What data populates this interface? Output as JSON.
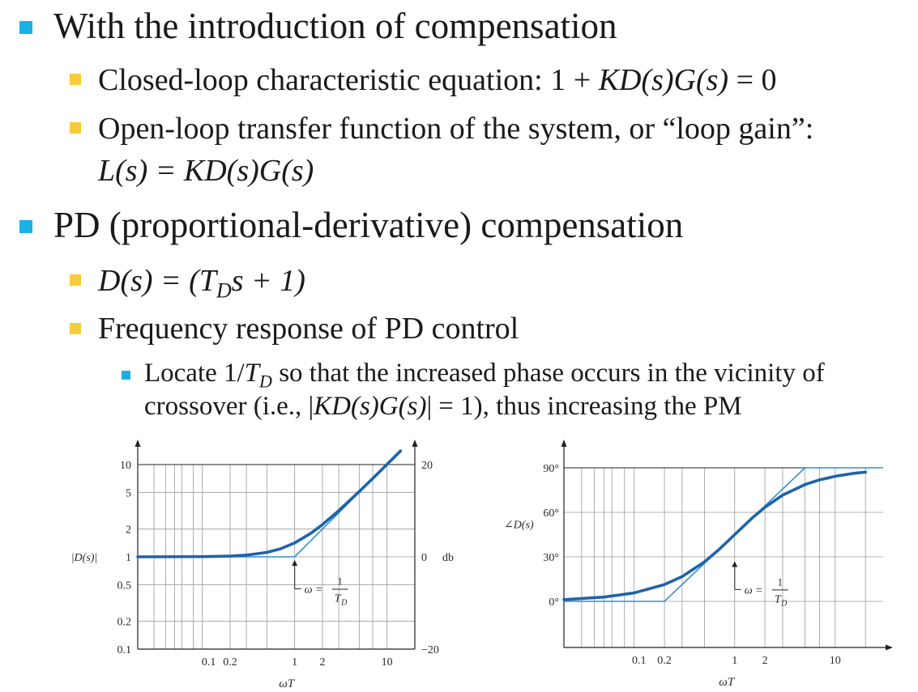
{
  "slide": {
    "bullet1": "With the introduction of compensation",
    "bullet1_1": {
      "text": "Closed-loop characteristic equation: 1 + ",
      "eq": "KD(s)G(s)",
      "tail": " = 0"
    },
    "bullet1_2": {
      "line1": "Open-loop transfer function of the system, or “loop gain”:",
      "line2": "L(s) = KD(s)G(s)"
    },
    "bullet2": "PD (proportional-derivative) compensation",
    "bullet2_1": {
      "eq": "D(s) = (T",
      "sub": "D",
      "tail": "s + 1)"
    },
    "bullet2_2": "Frequency response of PD control",
    "bullet2_2_1": {
      "pre": "Locate 1/",
      "t": "T",
      "sub": "D",
      "line1_tail": " so that the increased phase occurs in the vicinity of",
      "line2_pre": "crossover (i.e., |",
      "line2_eq": "KD(s)G(s)",
      "line2_tail": "| = 1), thus increasing the PM"
    }
  },
  "colors": {
    "bullet_level1": "#1ab2e6",
    "bullet_level2": "#f7cc3c",
    "curve": "#1f63a8",
    "asymptote": "#2f8fd0",
    "grid": "#9a9a9a"
  },
  "chart_data": [
    {
      "type": "line",
      "scale": "log-log",
      "xlabel": "ωT",
      "ylabel_left": "|D(s)|",
      "ylabel_right": "db",
      "x_ticks": [
        "0.1",
        "0.2",
        "1",
        "2",
        "10"
      ],
      "y_ticks_left": [
        "10",
        "5",
        "2",
        "1",
        "0.5",
        "0.2",
        "0.1"
      ],
      "y_ticks_right": [
        "20",
        "0",
        "−20"
      ],
      "xlim": [
        0.02,
        20
      ],
      "ylim": [
        0.1,
        10
      ],
      "annotation": {
        "at_x": 1,
        "lhs": "ω =",
        "num": "1",
        "den": "T",
        "den_sub": "D"
      },
      "series": [
        {
          "role": "exact",
          "x": [
            0.02,
            0.1,
            0.2,
            0.3,
            0.5,
            0.7,
            1,
            1.5,
            2,
            3,
            5,
            7,
            10,
            14
          ],
          "y": [
            1.0,
            1.005,
            1.02,
            1.044,
            1.118,
            1.221,
            1.414,
            1.803,
            2.236,
            3.162,
            5.099,
            7.071,
            10.05,
            14.04
          ]
        },
        {
          "role": "asymptote",
          "x": [
            0.02,
            1,
            14
          ],
          "y": [
            1,
            1,
            14
          ]
        }
      ]
    },
    {
      "type": "line",
      "scale": "semilog-x",
      "xlabel": "ωT",
      "ylabel": "∠D(s)",
      "x_ticks": [
        "0.1",
        "0.2",
        "1",
        "2",
        "10"
      ],
      "y_ticks": [
        "90°",
        "60°",
        "30°",
        "0°"
      ],
      "xlim": [
        0.02,
        30
      ],
      "ylim": [
        -30,
        90
      ],
      "annotation": {
        "at_x": 1,
        "lhs": "ω =",
        "num": "1",
        "den": "T",
        "den_sub": "D"
      },
      "series": [
        {
          "role": "exact",
          "x": [
            0.02,
            0.05,
            0.1,
            0.2,
            0.3,
            0.5,
            0.7,
            1,
            1.5,
            2,
            3,
            5,
            7,
            10,
            15,
            20
          ],
          "y": [
            1.1,
            2.9,
            5.7,
            11.3,
            16.7,
            26.6,
            35.0,
            45.0,
            56.3,
            63.4,
            71.6,
            78.7,
            81.9,
            84.3,
            86.2,
            87.1
          ]
        },
        {
          "role": "asymptote",
          "x": [
            0.02,
            0.2,
            5,
            30
          ],
          "y": [
            0,
            0,
            90,
            90
          ]
        }
      ]
    }
  ]
}
